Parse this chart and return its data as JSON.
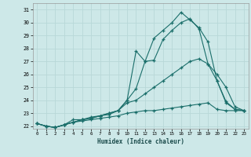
{
  "xlabel": "Humidex (Indice chaleur)",
  "background_color": "#cde8e8",
  "grid_color": "#b8d8d8",
  "line_color": "#1a6e6a",
  "xlim": [
    -0.5,
    23.5
  ],
  "ylim": [
    21.8,
    31.5
  ],
  "xticks": [
    0,
    1,
    2,
    3,
    4,
    5,
    6,
    7,
    8,
    9,
    10,
    11,
    12,
    13,
    14,
    15,
    16,
    17,
    18,
    19,
    20,
    21,
    22,
    23
  ],
  "yticks": [
    22,
    23,
    24,
    25,
    26,
    27,
    28,
    29,
    30,
    31
  ],
  "series": [
    [
      22.2,
      22.0,
      21.9,
      22.1,
      22.5,
      22.5,
      22.7,
      22.8,
      22.9,
      23.2,
      24.0,
      27.8,
      27.0,
      28.8,
      29.4,
      30.0,
      30.8,
      30.2,
      29.6,
      28.5,
      25.5,
      23.9,
      23.3,
      23.2
    ],
    [
      22.2,
      22.0,
      21.9,
      22.1,
      22.3,
      22.5,
      22.6,
      22.8,
      23.0,
      23.2,
      24.0,
      24.9,
      27.0,
      27.1,
      28.7,
      29.4,
      30.0,
      30.3,
      29.5,
      26.8,
      25.5,
      23.8,
      23.3,
      23.2
    ],
    [
      22.2,
      22.0,
      21.9,
      22.1,
      22.3,
      22.5,
      22.6,
      22.8,
      23.0,
      23.2,
      23.8,
      24.0,
      24.5,
      25.0,
      25.5,
      26.0,
      26.5,
      27.0,
      27.2,
      26.8,
      26.0,
      25.0,
      23.5,
      23.2
    ],
    [
      22.2,
      22.0,
      21.9,
      22.1,
      22.3,
      22.4,
      22.5,
      22.6,
      22.7,
      22.8,
      23.0,
      23.1,
      23.2,
      23.2,
      23.3,
      23.4,
      23.5,
      23.6,
      23.7,
      23.8,
      23.3,
      23.2,
      23.2,
      23.2
    ]
  ]
}
